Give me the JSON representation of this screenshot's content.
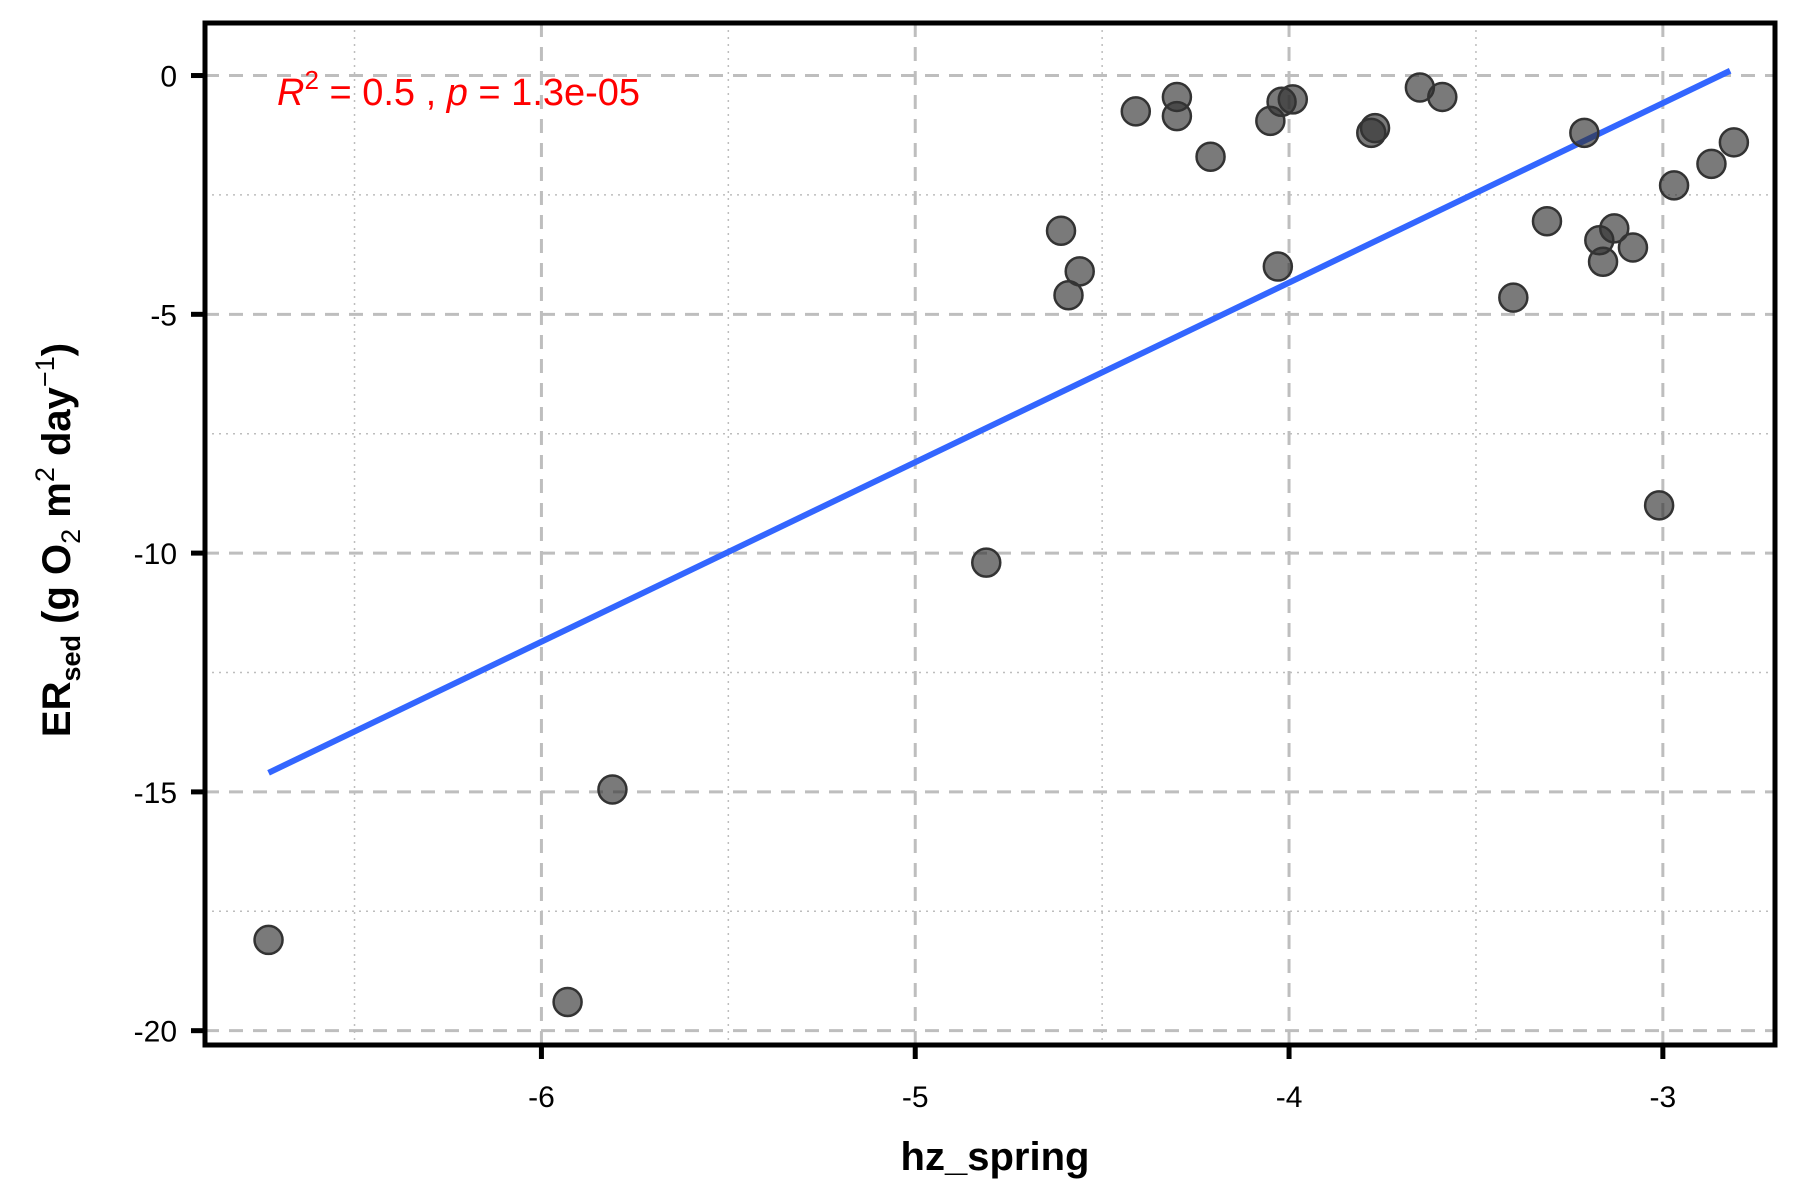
{
  "chart_data": {
    "type": "scatter",
    "title": "",
    "xlabel": "hz_spring",
    "ylabel": {
      "main": "ER",
      "sub": "sed",
      "rest_1": " (g O",
      "sub_2": "2",
      "rest_2": " m",
      "sup_2": "2",
      "rest_3": " day",
      "sup_3": "−1",
      "rest_4": ")"
    },
    "xlim": [
      -6.9,
      -2.7
    ],
    "ylim": [
      -20.3,
      1.1
    ],
    "x_ticks": [
      -6,
      -5,
      -4,
      -3
    ],
    "x_tick_labels": [
      "-6",
      "-5",
      "-4",
      "-3"
    ],
    "y_ticks": [
      0,
      -5,
      -10,
      -15,
      -20
    ],
    "y_tick_labels": [
      "0",
      "-5",
      "-10",
      "-15",
      "-20"
    ],
    "x_minor": [
      -6.5,
      -5.5,
      -4.5,
      -3.5
    ],
    "y_minor": [
      -2.5,
      -7.5,
      -12.5,
      -17.5
    ],
    "grid": true,
    "annotation": {
      "r_label": "R",
      "r_sup": "2",
      "r_value": " = 0.5 , ",
      "p_label": "p",
      "p_value": " = 1.3e-05",
      "color": "#ff0000"
    },
    "point_color": "#333333",
    "line_color": "#3366ff",
    "fit_line": {
      "x": [
        -6.73,
        -2.82
      ],
      "y": [
        -14.6,
        0.1
      ]
    },
    "series": [
      {
        "x": [
          -6.73,
          -5.93,
          -5.81,
          -4.81,
          -4.61,
          -4.59,
          -4.56,
          -4.41,
          -4.3,
          -4.3,
          -4.21,
          -4.05,
          -4.03,
          -4.02,
          -3.99,
          -3.78,
          -3.77,
          -3.65,
          -3.59,
          -3.4,
          -3.31,
          -3.21,
          -3.17,
          -3.16,
          -3.13,
          -3.08,
          -3.01,
          -2.97,
          -2.87,
          -2.81
        ],
        "y": [
          -18.1,
          -19.4,
          -14.95,
          -10.2,
          -3.25,
          -4.6,
          -4.1,
          -0.75,
          -0.45,
          -0.85,
          -1.7,
          -0.95,
          -4.0,
          -0.55,
          -0.5,
          -1.2,
          -1.1,
          -0.25,
          -0.45,
          -4.65,
          -3.05,
          -1.2,
          -3.45,
          -3.9,
          -3.2,
          -3.6,
          -9.0,
          -2.3,
          -1.85,
          -1.4
        ]
      }
    ]
  }
}
